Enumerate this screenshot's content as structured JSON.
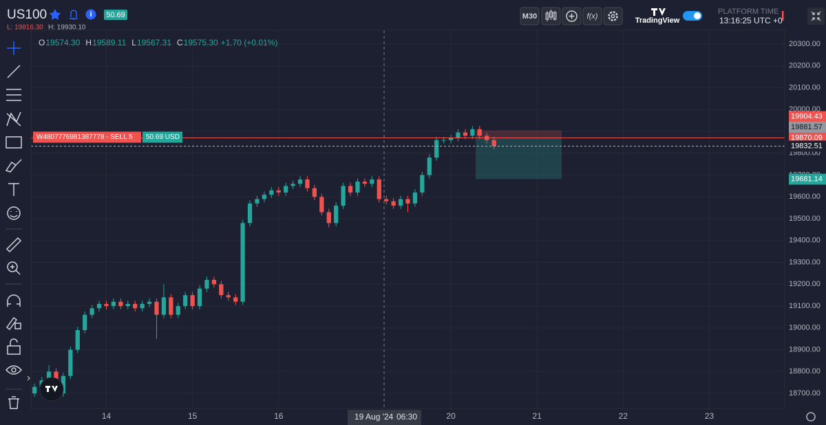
{
  "header": {
    "symbol": "US100",
    "badge": "50.69",
    "low": "L: 19816.30",
    "high": "H: 19930.10",
    "interval": "M30",
    "fx": "f(x)",
    "brand": "TradingView",
    "platform_time_label": "PLATFORM TIME",
    "platform_time": "13:16:25 UTC +0"
  },
  "legend": {
    "items": [
      {
        "key": "O",
        "value": "19574.30"
      },
      {
        "key": "H",
        "value": "19589.11"
      },
      {
        "key": "L",
        "value": "19567.31"
      },
      {
        "key": "C",
        "value": "19575.30"
      }
    ],
    "change": "+1.70 (+0.01%)"
  },
  "position": {
    "label": "W4807776981387778 - SELL 5",
    "pnl": "50.69 USD"
  },
  "crosshair": {
    "date": "19 Aug '24",
    "time": "06:30"
  },
  "chart_data": {
    "type": "candlestick",
    "up_color": "#26a69a",
    "down_color": "#ef5350",
    "grid": true,
    "categories": [
      null,
      null,
      null,
      null,
      null,
      null,
      null,
      null,
      null,
      null,
      "14",
      null,
      null,
      null,
      null,
      null,
      null,
      null,
      null,
      null,
      null,
      null,
      "15",
      null,
      null,
      null,
      null,
      null,
      null,
      null,
      null,
      null,
      null,
      null,
      "16",
      null,
      null,
      null,
      null,
      null,
      null,
      null,
      null,
      null,
      null,
      null,
      null,
      null,
      null,
      null,
      null,
      null,
      null,
      null,
      null,
      null,
      null,
      null,
      "20",
      null,
      null,
      null,
      null,
      null,
      null,
      null,
      null,
      null,
      null,
      null,
      "21",
      null,
      null,
      null,
      null,
      null,
      null,
      null,
      null,
      null,
      null,
      null,
      "22",
      null,
      null,
      null,
      null,
      null,
      null,
      null,
      null,
      null,
      null,
      null,
      "23",
      null,
      null,
      null,
      null,
      null,
      null,
      null,
      null,
      null,
      null
    ],
    "open": [
      18700,
      18730,
      18760,
      18800,
      18700,
      18780,
      18900,
      18990,
      19060,
      19090,
      19110,
      19100,
      19120,
      19100,
      19110,
      19090,
      19110,
      19120,
      19060,
      19140,
      19060,
      19100,
      19150,
      19100,
      19180,
      19220,
      19200,
      19150,
      19140,
      19120,
      19480,
      19570,
      19590,
      19610,
      19630,
      19620,
      19650,
      19660,
      19680,
      19640,
      19600,
      19530,
      19480,
      19560,
      19650,
      19620,
      19670,
      19660,
      19680,
      19590,
      19580,
      19560,
      19590,
      19570,
      19620,
      19700,
      19780,
      19860,
      19860,
      19870,
      19895,
      19880,
      19910,
      19880,
      19860,
      null,
      null,
      null,
      null,
      null,
      null,
      null,
      null,
      null,
      null,
      null,
      null,
      null,
      null,
      null,
      null,
      null,
      null,
      null,
      null,
      null,
      null,
      null,
      null,
      null,
      null,
      null,
      null,
      null,
      null,
      null,
      null,
      null,
      null,
      null,
      null,
      null,
      null,
      null,
      null
    ],
    "high": [
      18745,
      18775,
      18830,
      18815,
      18795,
      18915,
      19005,
      19075,
      19105,
      19125,
      19125,
      19135,
      19135,
      19125,
      19125,
      19125,
      19135,
      19135,
      19200,
      19155,
      19115,
      19165,
      19165,
      19195,
      19235,
      19235,
      19215,
      19165,
      19155,
      19495,
      19585,
      19605,
      19625,
      19645,
      19645,
      19665,
      19675,
      19695,
      19695,
      19655,
      19615,
      19545,
      19575,
      19665,
      19665,
      19685,
      19685,
      19695,
      19695,
      19605,
      19595,
      19605,
      19605,
      19635,
      19715,
      19795,
      19875,
      19875,
      19885,
      19910,
      19910,
      19925,
      19925,
      19895,
      19875,
      null,
      null,
      null,
      null,
      null,
      null,
      null,
      null,
      null,
      null,
      null,
      null,
      null,
      null,
      null,
      null,
      null,
      null,
      null,
      null,
      null,
      null,
      null,
      null,
      null,
      null,
      null,
      null,
      null,
      null,
      null,
      null,
      null,
      null,
      null,
      null,
      null,
      null,
      null,
      null
    ],
    "low": [
      18685,
      18715,
      18745,
      18670,
      18685,
      18765,
      18885,
      18975,
      19045,
      19075,
      19085,
      19085,
      19085,
      19085,
      19075,
      19075,
      19095,
      18950,
      19045,
      19045,
      19045,
      19085,
      19085,
      19085,
      19165,
      19185,
      19135,
      19125,
      19105,
      19105,
      19465,
      19555,
      19575,
      19595,
      19605,
      19605,
      19635,
      19645,
      19625,
      19585,
      19515,
      19460,
      19465,
      19545,
      19605,
      19605,
      19645,
      19645,
      19575,
      19565,
      19545,
      19545,
      19530,
      19555,
      19605,
      19685,
      19765,
      19845,
      19845,
      19855,
      19865,
      19865,
      19865,
      19845,
      19818,
      null,
      null,
      null,
      null,
      null,
      null,
      null,
      null,
      null,
      null,
      null,
      null,
      null,
      null,
      null,
      null,
      null,
      null,
      null,
      null,
      null,
      null,
      null,
      null,
      null,
      null,
      null,
      null,
      null,
      null,
      null,
      null,
      null,
      null,
      null,
      null,
      null,
      null,
      null,
      null
    ],
    "close": [
      18730,
      18760,
      18800,
      18700,
      18780,
      18900,
      18990,
      19060,
      19090,
      19110,
      19100,
      19120,
      19100,
      19110,
      19090,
      19110,
      19120,
      19060,
      19140,
      19060,
      19100,
      19150,
      19100,
      19180,
      19220,
      19200,
      19150,
      19140,
      19120,
      19480,
      19570,
      19590,
      19610,
      19630,
      19620,
      19650,
      19660,
      19680,
      19640,
      19600,
      19530,
      19480,
      19560,
      19650,
      19620,
      19670,
      19660,
      19680,
      19590,
      19580,
      19560,
      19590,
      19570,
      19620,
      19700,
      19780,
      19860,
      19860,
      19870,
      19895,
      19880,
      19910,
      19880,
      19860,
      19832.51,
      null,
      null,
      null,
      null,
      null,
      null,
      null,
      null,
      null,
      null,
      null,
      null,
      null,
      null,
      null,
      null,
      null,
      null,
      null,
      null,
      null,
      null,
      null,
      null,
      null,
      null,
      null,
      null,
      null,
      null,
      null,
      null,
      null,
      null,
      null,
      null,
      null,
      null,
      null,
      null
    ],
    "ylim": [
      18631,
      20363
    ],
    "yticks": [
      {
        "value": 18700,
        "label": "18700.00"
      },
      {
        "value": 18800,
        "label": "18800.00"
      },
      {
        "value": 18900,
        "label": "18900.00"
      },
      {
        "value": 19000,
        "label": "19000.00"
      },
      {
        "value": 19100,
        "label": "19100.00"
      },
      {
        "value": 19200,
        "label": "19200.00"
      },
      {
        "value": 19300,
        "label": "19300.00"
      },
      {
        "value": 19400,
        "label": "19400.00"
      },
      {
        "value": 19500,
        "label": "19500.00"
      },
      {
        "value": 19600,
        "label": "19600.00"
      },
      {
        "value": 19700,
        "label": "19700.00"
      },
      {
        "value": 19800,
        "label": "19800.00"
      },
      {
        "value": 19900,
        "label": "19900.00"
      },
      {
        "value": 20000,
        "label": "20000.00"
      },
      {
        "value": 20100,
        "label": "20100.00"
      },
      {
        "value": 20200,
        "label": "20200.00"
      },
      {
        "value": 20300,
        "label": "20300.00"
      }
    ],
    "levels": {
      "entry": 19870.09,
      "stop": 19904.43,
      "mark": 19881.57,
      "target": 19681.14
    }
  }
}
